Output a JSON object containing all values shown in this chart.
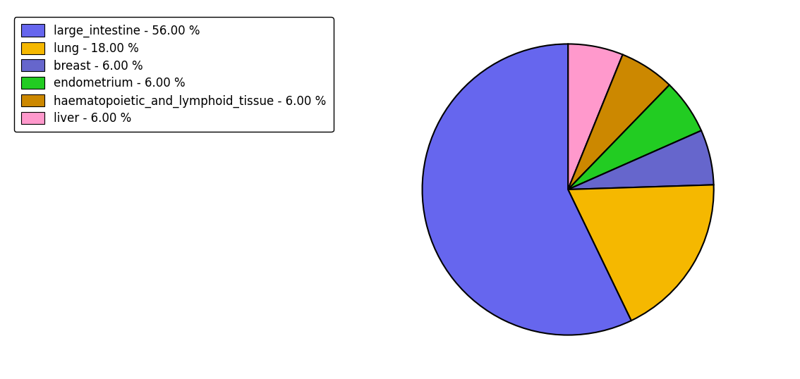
{
  "labels": [
    "large_intestine",
    "lung",
    "breast",
    "endometrium",
    "haematopoietic_and_lymphoid_tissue",
    "liver"
  ],
  "values": [
    56.0,
    18.0,
    6.0,
    6.0,
    6.0,
    6.0
  ],
  "colors_map": {
    "large_intestine": "#6666ee",
    "lung": "#f5b800",
    "breast": "#6666cc",
    "endometrium": "#22cc22",
    "haematopoietic_and_lymphoid_tissue": "#cc8800",
    "liver": "#ff99cc"
  },
  "legend_labels": [
    "large_intestine - 56.00 %",
    "lung - 18.00 %",
    "breast - 6.00 %",
    "endometrium - 6.00 %",
    "haematopoietic_and_lymphoid_tissue - 6.00 %",
    "liver - 6.00 %"
  ],
  "legend_colors": [
    "#6666ee",
    "#f5b800",
    "#6666cc",
    "#22cc22",
    "#cc8800",
    "#ff99cc"
  ],
  "plot_order": [
    "liver",
    "haematopoietic_and_lymphoid_tissue",
    "endometrium",
    "breast",
    "lung",
    "large_intestine"
  ],
  "plot_values": [
    6.0,
    6.0,
    6.0,
    6.0,
    18.0,
    56.0
  ],
  "startangle": 90,
  "figsize": [
    11.34,
    5.38
  ],
  "dpi": 100
}
